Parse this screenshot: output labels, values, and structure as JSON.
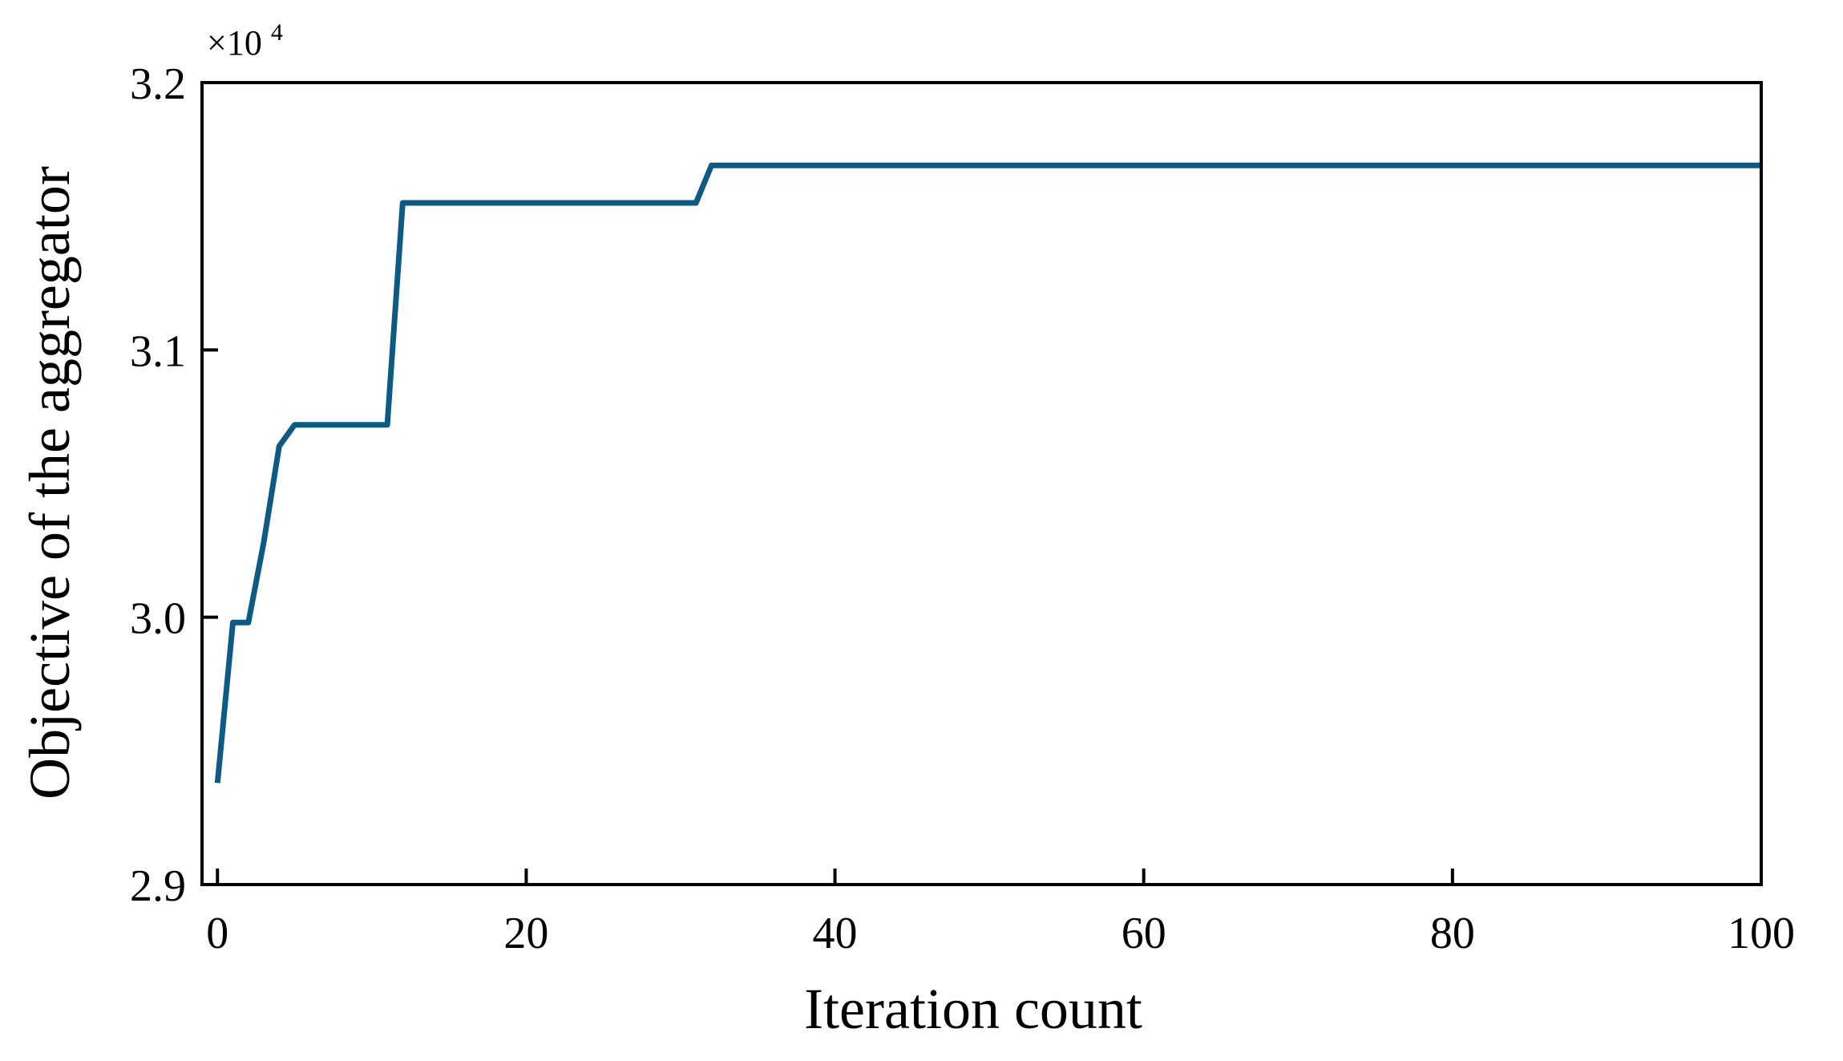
{
  "chart_data": {
    "type": "line",
    "title": "",
    "xlabel": "Iteration count",
    "ylabel": "Objective of the aggregator",
    "y_multiplier_label": {
      "base": "×10",
      "exponent": "4"
    },
    "xlim": [
      -1,
      100
    ],
    "ylim": [
      2.9,
      3.2
    ],
    "xticks": [
      0,
      20,
      40,
      60,
      80,
      100
    ],
    "yticks": [
      2.9,
      3.0,
      3.1,
      3.2
    ],
    "xtick_labels": [
      "0",
      "20",
      "40",
      "60",
      "80",
      "100"
    ],
    "ytick_labels": [
      "2.9",
      "3.0",
      "3.1",
      "3.2"
    ],
    "grid": false,
    "legend": "none",
    "series": [
      {
        "color": "#0d5a85",
        "x": [
          0,
          1,
          2,
          3,
          4,
          5,
          6,
          7,
          8,
          9,
          10,
          11,
          12,
          13,
          20,
          31,
          32,
          33,
          100
        ],
        "y": [
          2.938,
          2.998,
          2.998,
          3.028,
          3.064,
          3.072,
          3.072,
          3.072,
          3.072,
          3.072,
          3.072,
          3.072,
          3.155,
          3.155,
          3.155,
          3.155,
          3.169,
          3.169,
          3.169
        ]
      }
    ]
  }
}
